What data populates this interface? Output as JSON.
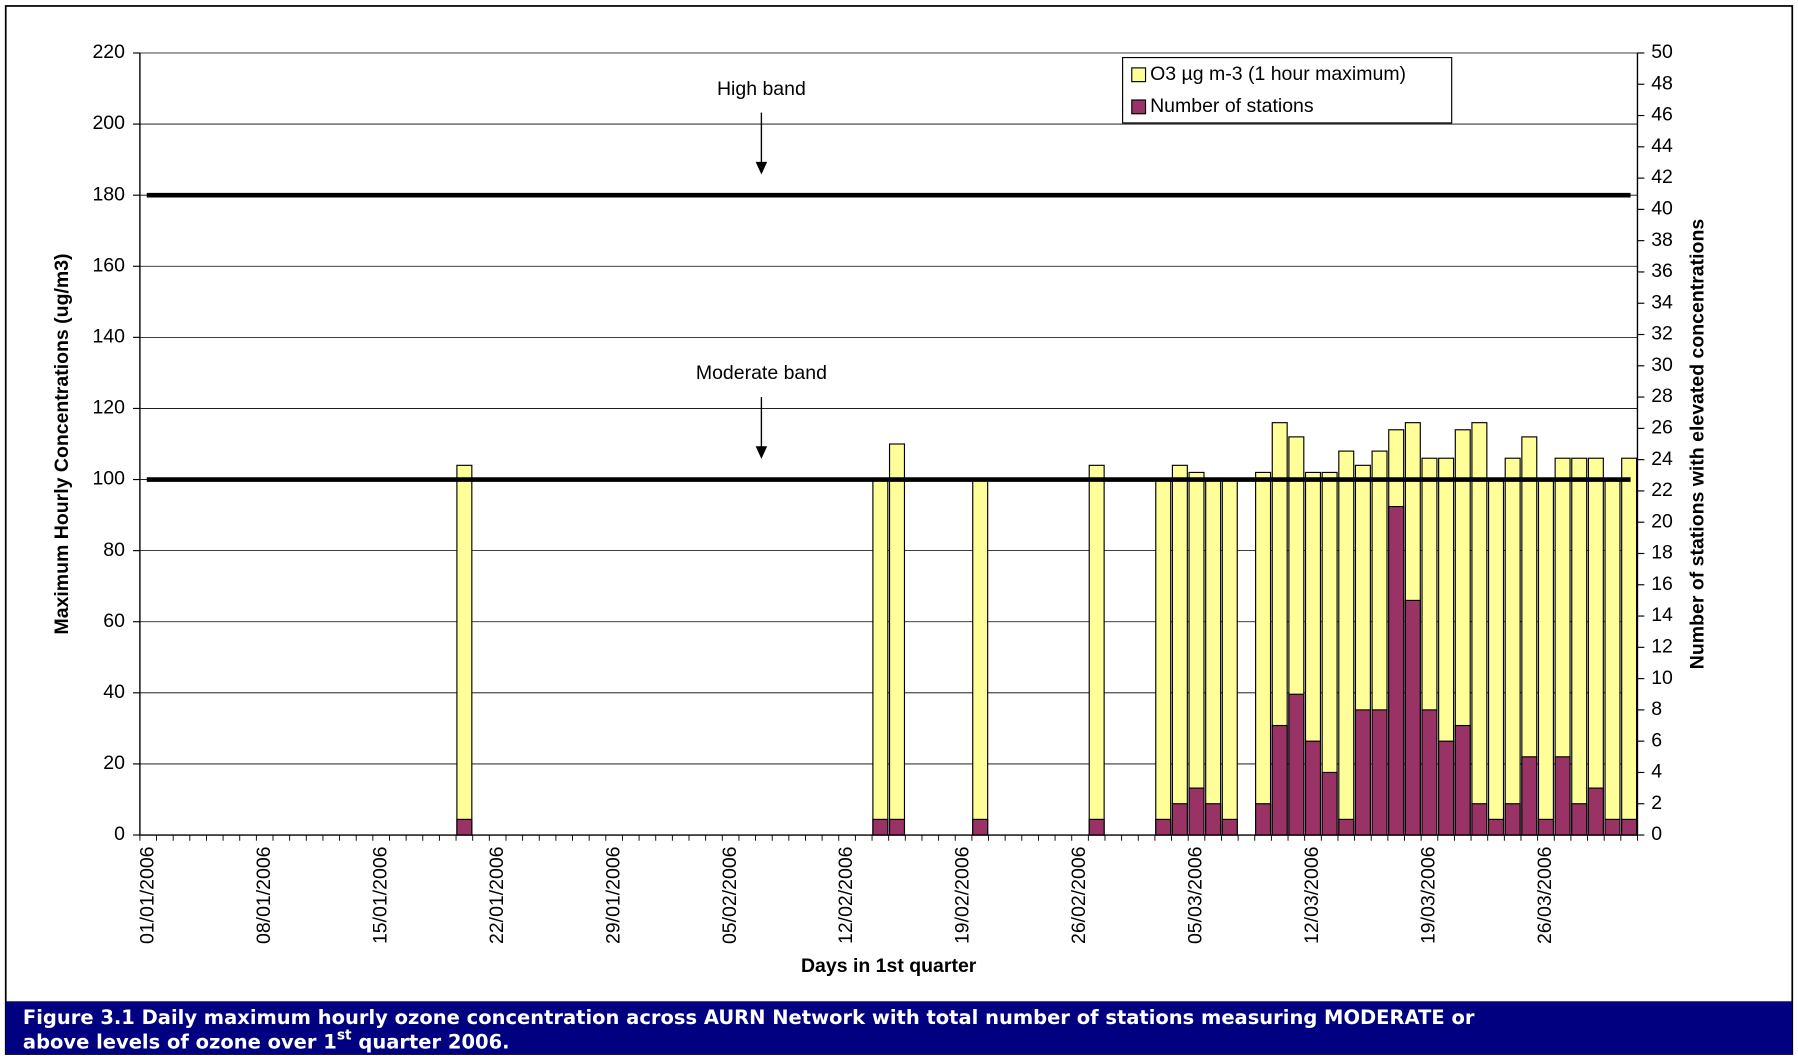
{
  "chart_data": {
    "type": "bar",
    "x_label": "Days in 1st quarter",
    "y_label": "Maximum Hourly Concentrations (ug/m3)",
    "y2_label": "Number of stations with elevated concentrations",
    "caption": [
      "Figure 3.1 Daily maximum hourly ozone concentration across AURN Network with total number of stations measuring MODERATE or",
      "above levels of ozone over 1",
      "st",
      " quarter 2006."
    ],
    "categories": [
      "01/01/2006",
      null,
      null,
      null,
      null,
      null,
      null,
      "08/01/2006",
      null,
      null,
      null,
      null,
      null,
      null,
      "15/01/2006",
      null,
      null,
      null,
      null,
      null,
      null,
      "22/01/2006",
      null,
      null,
      null,
      null,
      null,
      null,
      "29/01/2006",
      null,
      null,
      null,
      null,
      null,
      null,
      "05/02/2006",
      null,
      null,
      null,
      null,
      null,
      null,
      "12/02/2006",
      null,
      null,
      null,
      null,
      null,
      null,
      "19/02/2006",
      null,
      null,
      null,
      null,
      null,
      null,
      "26/02/2006",
      null,
      null,
      null,
      null,
      null,
      null,
      "05/03/2006",
      null,
      null,
      null,
      null,
      null,
      null,
      "12/03/2006",
      null,
      null,
      null,
      null,
      null,
      null,
      "19/03/2006",
      null,
      null,
      null,
      null,
      null,
      null,
      "26/03/2006",
      null,
      null,
      null,
      null,
      null
    ],
    "series": [
      {
        "name": "O3 µg m-3 (1 hour maximum)",
        "color": "#ffff99",
        "values": [
          null,
          null,
          null,
          null,
          null,
          null,
          null,
          null,
          null,
          null,
          null,
          null,
          null,
          null,
          null,
          null,
          null,
          null,
          null,
          104,
          null,
          null,
          null,
          null,
          null,
          null,
          null,
          null,
          null,
          null,
          null,
          null,
          null,
          null,
          null,
          null,
          null,
          null,
          null,
          null,
          null,
          null,
          null,
          null,
          100,
          110,
          null,
          null,
          null,
          null,
          100,
          null,
          null,
          null,
          null,
          null,
          null,
          104,
          null,
          null,
          null,
          100,
          104,
          102,
          100,
          100,
          null,
          102,
          116,
          112,
          102,
          102,
          108,
          104,
          108,
          114,
          116,
          106,
          106,
          114,
          116,
          100,
          106,
          112,
          100,
          106,
          106,
          106,
          100,
          106
        ]
      },
      {
        "name": "Number of stations",
        "color": "#993366",
        "axis": "y2",
        "values": [
          null,
          null,
          null,
          null,
          null,
          null,
          null,
          null,
          null,
          null,
          null,
          null,
          null,
          null,
          null,
          null,
          null,
          null,
          null,
          1,
          null,
          null,
          null,
          null,
          null,
          null,
          null,
          null,
          null,
          null,
          null,
          null,
          null,
          null,
          null,
          null,
          null,
          null,
          null,
          null,
          null,
          null,
          null,
          null,
          1,
          1,
          null,
          null,
          null,
          null,
          1,
          null,
          null,
          null,
          null,
          null,
          null,
          1,
          null,
          null,
          null,
          1,
          2,
          3,
          2,
          1,
          null,
          2,
          7,
          9,
          6,
          4,
          1,
          8,
          8,
          21,
          15,
          8,
          6,
          7,
          2,
          1,
          2,
          5,
          1,
          5,
          2,
          3,
          1,
          1
        ]
      }
    ],
    "reference_lines": [
      {
        "value": 180,
        "label": "High band"
      },
      {
        "value": 100,
        "label": "Moderate band"
      }
    ],
    "ylim": [
      0,
      220
    ],
    "yticks": [
      0,
      20,
      40,
      60,
      80,
      100,
      120,
      140,
      160,
      180,
      200,
      220
    ],
    "y2lim": [
      0,
      50
    ],
    "y2ticks": [
      0,
      2,
      4,
      6,
      8,
      10,
      12,
      14,
      16,
      18,
      20,
      22,
      24,
      26,
      28,
      30,
      32,
      34,
      36,
      38,
      40,
      42,
      44,
      46,
      48,
      50
    ],
    "grid": true,
    "legend": "upper right"
  }
}
